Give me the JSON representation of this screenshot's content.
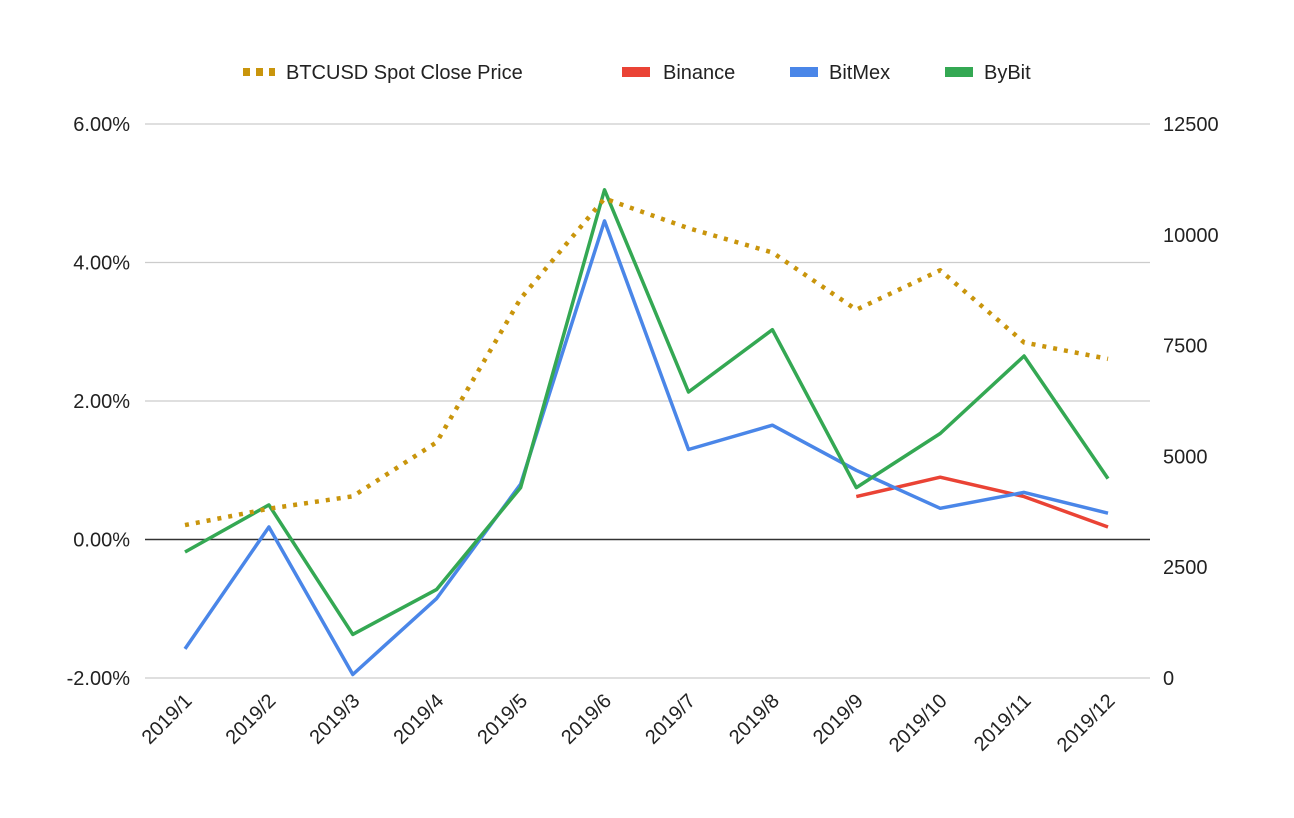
{
  "chart_data": {
    "type": "line",
    "categories": [
      "2019/1",
      "2019/2",
      "2019/3",
      "2019/4",
      "2019/5",
      "2019/6",
      "2019/7",
      "2019/8",
      "2019/9",
      "2019/10",
      "2019/11",
      "2019/12"
    ],
    "left_axis": {
      "ylim": [
        -0.02,
        0.06
      ],
      "ticks": [
        -0.02,
        0.0,
        0.02,
        0.04,
        0.06
      ],
      "tick_labels": [
        "-2.00%",
        "0.00%",
        "2.00%",
        "4.00%",
        "6.00%"
      ]
    },
    "right_axis": {
      "ylim": [
        0,
        12500
      ],
      "ticks": [
        0,
        2500,
        5000,
        7500,
        10000,
        12500
      ],
      "tick_labels": [
        "0",
        "2500",
        "5000",
        "7500",
        "10000",
        "12500"
      ]
    },
    "grid": true,
    "legend_position": "top",
    "series": [
      {
        "name": "BTCUSD Spot Close Price",
        "axis": "right",
        "style": "dotted",
        "color": "#c9950c",
        "values": [
          3450,
          3820,
          4100,
          5320,
          8560,
          10820,
          10150,
          9600,
          8310,
          9200,
          7570,
          7200
        ]
      },
      {
        "name": "Binance",
        "axis": "left",
        "style": "solid",
        "color": "#ea4335",
        "values": [
          null,
          null,
          null,
          null,
          null,
          null,
          null,
          null,
          0.0062,
          0.009,
          0.0062,
          0.0018
        ]
      },
      {
        "name": "BitMex",
        "axis": "left",
        "style": "solid",
        "color": "#4a86e8",
        "values": [
          -0.0158,
          0.0018,
          -0.0195,
          -0.0085,
          0.008,
          0.046,
          0.013,
          0.0165,
          0.01,
          0.0045,
          0.0068,
          0.0038
        ]
      },
      {
        "name": "ByBit",
        "axis": "left",
        "style": "solid",
        "color": "#34a853",
        "values": [
          -0.0018,
          0.005,
          -0.0137,
          -0.0072,
          0.0075,
          0.0505,
          0.0213,
          0.0303,
          0.0075,
          0.0153,
          0.0265,
          0.0088
        ]
      }
    ]
  }
}
